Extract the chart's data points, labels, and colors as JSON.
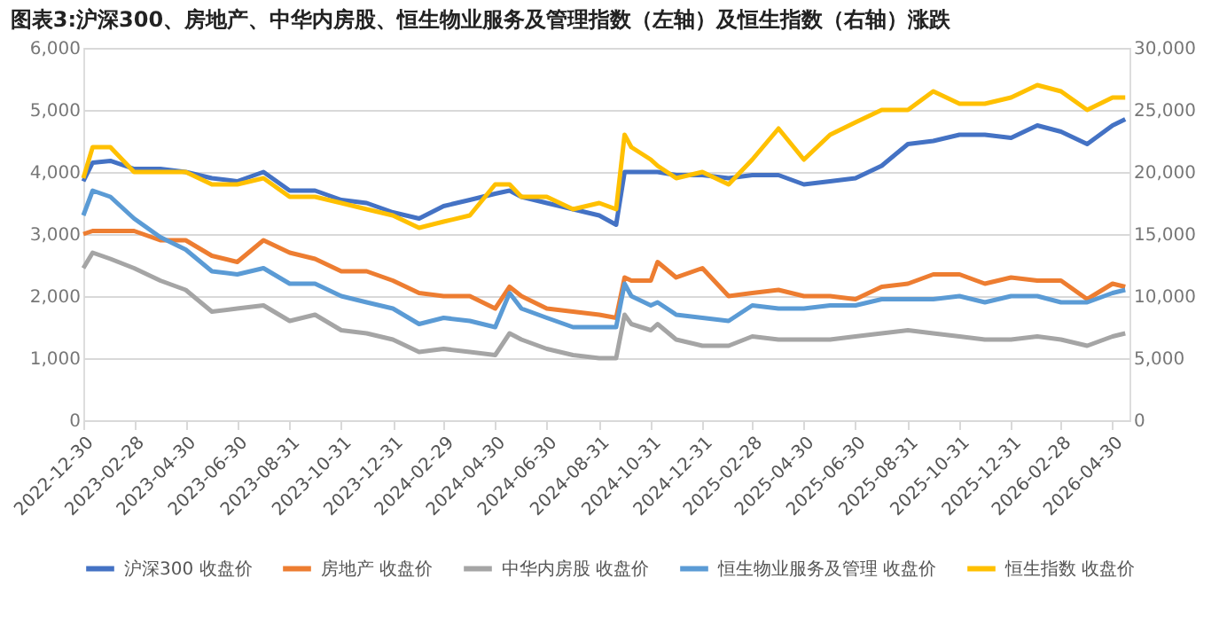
{
  "chart_data": {
    "type": "line",
    "title": "图表3:沪深300、房地产、中华内房股、恒生物业服务及管理指数（左轴）及恒生指数（右轴）涨跌",
    "x": [
      "2022-12-30",
      "2023-01-10",
      "2023-01-31",
      "2023-02-28",
      "2023-03-31",
      "2023-04-30",
      "2023-05-31",
      "2023-06-30",
      "2023-07-31",
      "2023-08-31",
      "2023-09-30",
      "2023-10-31",
      "2023-11-30",
      "2023-12-31",
      "2024-01-31",
      "2024-02-29",
      "2024-03-31",
      "2024-04-30",
      "2024-05-17",
      "2024-05-31",
      "2024-06-30",
      "2024-07-31",
      "2024-08-31",
      "2024-09-20",
      "2024-09-30",
      "2024-10-08",
      "2024-10-31",
      "2024-11-08",
      "2024-11-30",
      "2024-12-31",
      "2025-01-31",
      "2025-02-28",
      "2025-03-31",
      "2025-04-30",
      "2025-05-31",
      "2025-06-30",
      "2025-07-31",
      "2025-08-31",
      "2025-09-30",
      "2025-10-31",
      "2025-11-30",
      "2025-12-31",
      "2026-01-31",
      "2026-02-28",
      "2026-03-31",
      "2026-04-30",
      "2026-05-15"
    ],
    "series": [
      {
        "name": "沪深300 收盘价",
        "color": "#4472c4",
        "values": [
          3850,
          4150,
          4180,
          4050,
          4050,
          4000,
          3900,
          3850,
          4000,
          3700,
          3700,
          3550,
          3500,
          3350,
          3250,
          3450,
          3550,
          3650,
          3700,
          3600,
          3500,
          3400,
          3300,
          3150,
          4000,
          4000,
          4000,
          4000,
          3950,
          3950,
          3900,
          3950,
          3950,
          3800,
          3850,
          3900,
          4100,
          4450,
          4500,
          4600,
          4600,
          4550,
          4750,
          4650,
          4450,
          4750,
          4850
        ]
      },
      {
        "name": "房地产 收盘价",
        "color": "#ed7d31",
        "values": [
          3000,
          3050,
          3050,
          3050,
          2900,
          2900,
          2650,
          2550,
          2900,
          2700,
          2600,
          2400,
          2400,
          2250,
          2050,
          2000,
          2000,
          1800,
          2150,
          2000,
          1800,
          1750,
          1700,
          1650,
          2300,
          2250,
          2250,
          2550,
          2300,
          2450,
          2000,
          2050,
          2100,
          2000,
          2000,
          1950,
          2150,
          2200,
          2350,
          2350,
          2200,
          2300,
          2250,
          2250,
          1950,
          2200,
          2150
        ]
      },
      {
        "name": "中华内房股 收盘价",
        "color": "#a5a5a5",
        "values": [
          2450,
          2700,
          2600,
          2450,
          2250,
          2100,
          1750,
          1800,
          1850,
          1600,
          1700,
          1450,
          1400,
          1300,
          1100,
          1150,
          1100,
          1050,
          1400,
          1300,
          1150,
          1050,
          1000,
          1000,
          1700,
          1550,
          1450,
          1550,
          1300,
          1200,
          1200,
          1350,
          1300,
          1300,
          1300,
          1350,
          1400,
          1450,
          1400,
          1350,
          1300,
          1300,
          1350,
          1300,
          1200,
          1350,
          1400
        ]
      },
      {
        "name": "恒生物业服务及管理 收盘价",
        "color": "#5b9bd5",
        "values": [
          3300,
          3700,
          3600,
          3250,
          2950,
          2750,
          2400,
          2350,
          2450,
          2200,
          2200,
          2000,
          1900,
          1800,
          1550,
          1650,
          1600,
          1500,
          2050,
          1800,
          1650,
          1500,
          1500,
          1500,
          2200,
          2000,
          1850,
          1900,
          1700,
          1650,
          1600,
          1850,
          1800,
          1800,
          1850,
          1850,
          1950,
          1950,
          1950,
          2000,
          1900,
          2000,
          2000,
          1900,
          1900,
          2050,
          2100
        ]
      },
      {
        "name": "恒生指数 收盘价",
        "color": "#ffc000",
        "axis": "y2",
        "values": [
          19500,
          22000,
          22000,
          20000,
          20000,
          20000,
          19000,
          19000,
          19500,
          18000,
          18000,
          17500,
          17000,
          16500,
          15500,
          16000,
          16500,
          19000,
          19000,
          18000,
          18000,
          17000,
          17500,
          17000,
          23000,
          22000,
          21000,
          20500,
          19500,
          20000,
          19000,
          21000,
          23500,
          21000,
          23000,
          24000,
          25000,
          25000,
          26500,
          25500,
          25500,
          26000,
          27000,
          26500,
          25000,
          26000,
          26000
        ]
      }
    ],
    "xlim": [
      "2022-12-30",
      "2026-05-20"
    ],
    "xticks": [
      "2022-12-30",
      "2023-02-28",
      "2023-04-30",
      "2023-06-30",
      "2023-08-31",
      "2023-10-31",
      "2023-12-31",
      "2024-02-29",
      "2024-04-30",
      "2024-06-30",
      "2024-08-31",
      "2024-10-31",
      "2024-12-31",
      "2025-02-28",
      "2025-04-30",
      "2025-06-30",
      "2025-08-31",
      "2025-10-31",
      "2025-12-31",
      "2026-02-28",
      "2026-04-30"
    ],
    "ylim": [
      0,
      6000
    ],
    "yticks": [
      0,
      {
        "value": 1000,
        "label": "1,000"
      },
      {
        "value": 2000,
        "label": "2,000"
      },
      {
        "value": 3000,
        "label": "3,000"
      },
      {
        "value": 4000,
        "label": "4,000"
      },
      {
        "value": 5000,
        "label": "5,000"
      },
      {
        "value": 6000,
        "label": "6,000"
      }
    ],
    "y2lim": [
      0,
      30000
    ],
    "y2ticks": [
      0,
      {
        "value": 5000,
        "label": "5,000"
      },
      {
        "value": 10000,
        "label": "10,000"
      },
      {
        "value": 15000,
        "label": "15,000"
      },
      {
        "value": 20000,
        "label": "20,000"
      },
      {
        "value": 25000,
        "label": "25,000"
      },
      {
        "value": 30000,
        "label": "30,000"
      }
    ],
    "grid": "y",
    "legend": "bottom",
    "line_style": "solid"
  }
}
